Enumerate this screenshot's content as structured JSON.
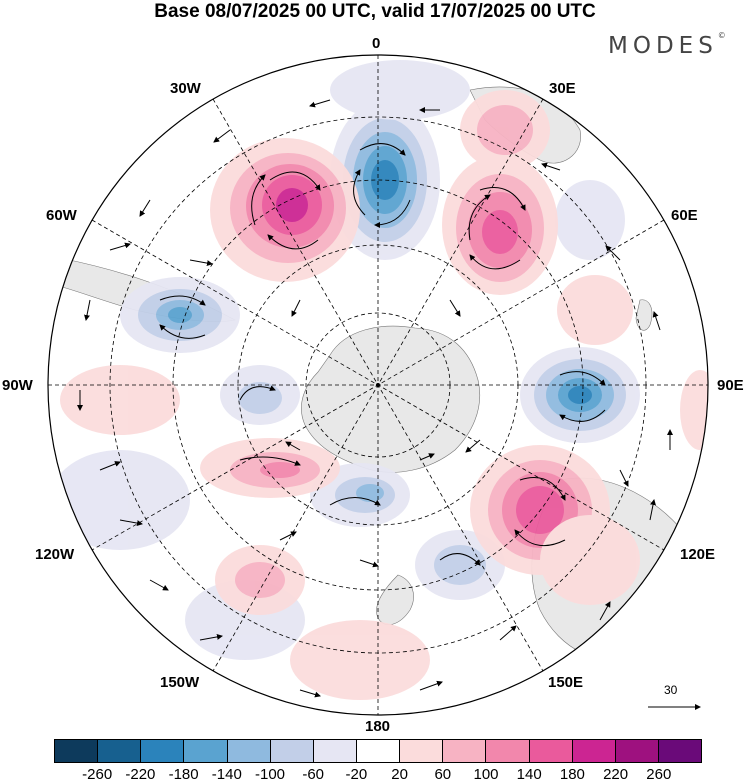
{
  "title": "Base 08/07/2025 00 UTC, valid 17/07/2025 00 UTC",
  "brand": "MODES",
  "brand_mark": "©",
  "longitude_labels": {
    "top": "0",
    "top_right": "30E",
    "right_upper": "60E",
    "right": "90E",
    "right_lower": "120E",
    "bottom_right": "150E",
    "bottom": "180",
    "bottom_left": "150W",
    "left_lower": "120W",
    "left": "90W",
    "left_upper": "60W",
    "top_left": "30W"
  },
  "vector_scale": {
    "label": "30",
    "icon": "arrow-right-icon"
  },
  "colorbar": {
    "colors": [
      "#0d3a5c",
      "#17608f",
      "#2b83bb",
      "#5aa3d0",
      "#8fbadf",
      "#c2cfe8",
      "#e6e6f3",
      "#ffffff",
      "#fbdcdc",
      "#f7b3c3",
      "#f287ac",
      "#ea5a9c",
      "#cc2592",
      "#9e117f",
      "#6a0a79"
    ],
    "ticks": [
      "-260",
      "-220",
      "-180",
      "-140",
      "-100",
      "-60",
      "-20",
      "20",
      "60",
      "100",
      "140",
      "180",
      "220",
      "260"
    ]
  },
  "colors": {
    "land": "#e8e8e8",
    "grid": "#000000"
  }
}
